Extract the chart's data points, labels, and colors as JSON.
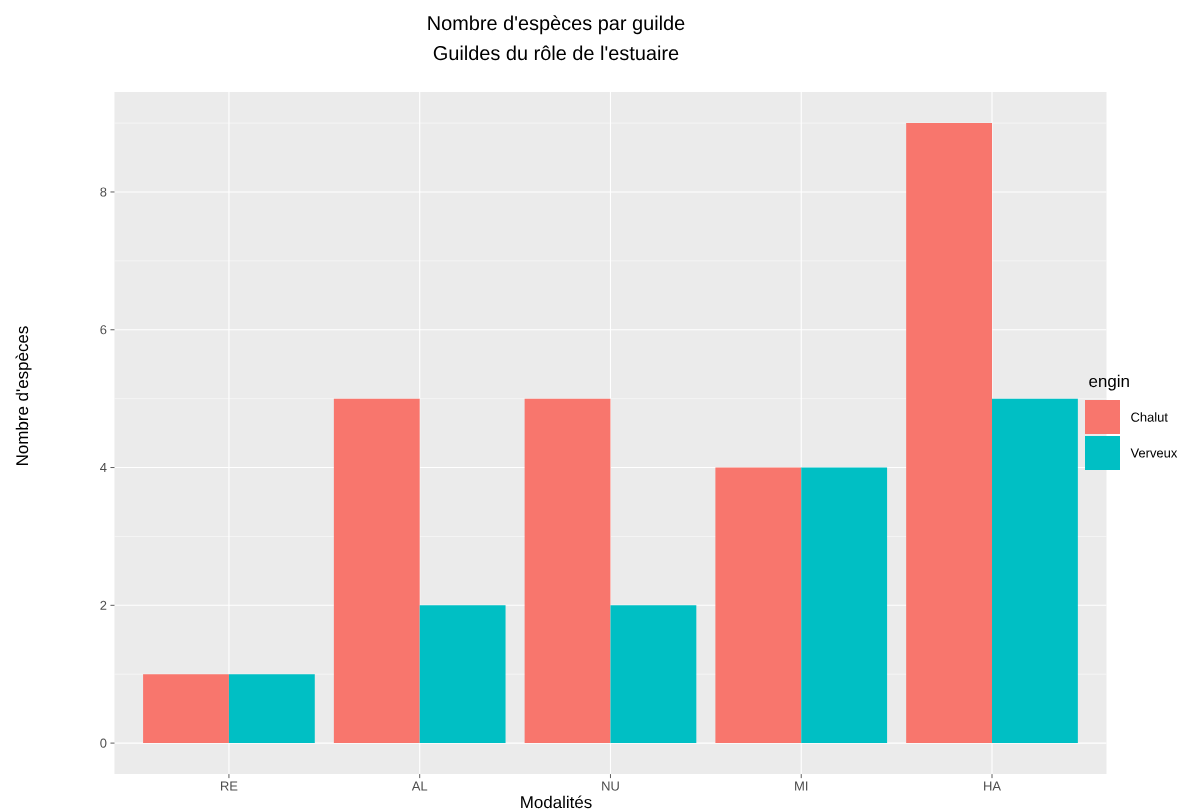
{
  "chart_data": {
    "type": "bar",
    "title": "Nombre d'espèces par guilde",
    "subtitle": "Guildes du rôle de l'estuaire",
    "xlabel": "Modalités",
    "ylabel": "Nombre d'espèces",
    "legend_title": "engin",
    "categories": [
      "RE",
      "AL",
      "NU",
      "MI",
      "HA"
    ],
    "series": [
      {
        "name": "Chalut",
        "color": "#f8766d",
        "values": [
          1,
          5,
          5,
          4,
          9
        ]
      },
      {
        "name": "Verveux",
        "color": "#00bfc4",
        "values": [
          1,
          2,
          2,
          4,
          5
        ]
      }
    ],
    "ylim": [
      -0.45,
      9.45
    ],
    "yticks": [
      0,
      2,
      4,
      6,
      8
    ],
    "grid": true,
    "legend": "right"
  }
}
